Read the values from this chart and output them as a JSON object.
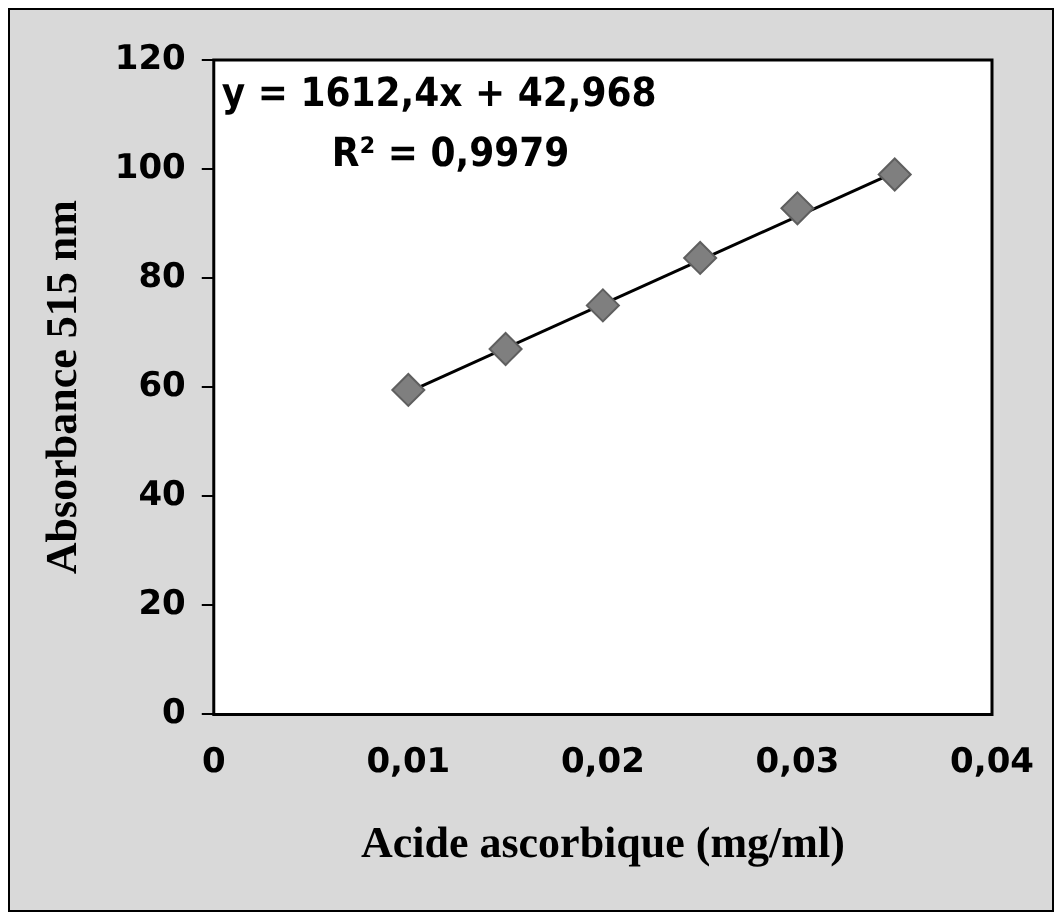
{
  "chart_data": {
    "type": "scatter",
    "xlabel": "Acide ascorbique (mg/ml)",
    "ylabel": "Absorbance 515 nm",
    "annotations": [
      "y = 1612,4x + 42,968",
      "R² = 0,9979"
    ],
    "x": [
      0.01,
      0.015,
      0.02,
      0.025,
      0.03,
      0.035
    ],
    "series": [
      {
        "color": "#7f7f7f",
        "marker": "diamond",
        "values": [
          59.5,
          67,
          75,
          83.7,
          92.8,
          99
        ]
      },
      {
        "type": "line",
        "color": "#000000",
        "marker": "none",
        "x": [
          0.01,
          0.035
        ],
        "values": [
          59.1,
          99.4
        ]
      }
    ],
    "xlim": [
      0,
      0.04
    ],
    "xticks": [
      0,
      {
        "value": 0.01,
        "label": "0,01"
      },
      {
        "value": 0.02,
        "label": "0,02"
      },
      {
        "value": 0.03,
        "label": "0,03"
      },
      {
        "value": 0.04,
        "label": "0,04"
      }
    ],
    "ylim": [
      0,
      120
    ],
    "yticks": [
      0,
      20,
      40,
      60,
      80,
      100,
      120
    ],
    "grid": false,
    "legend": false
  }
}
